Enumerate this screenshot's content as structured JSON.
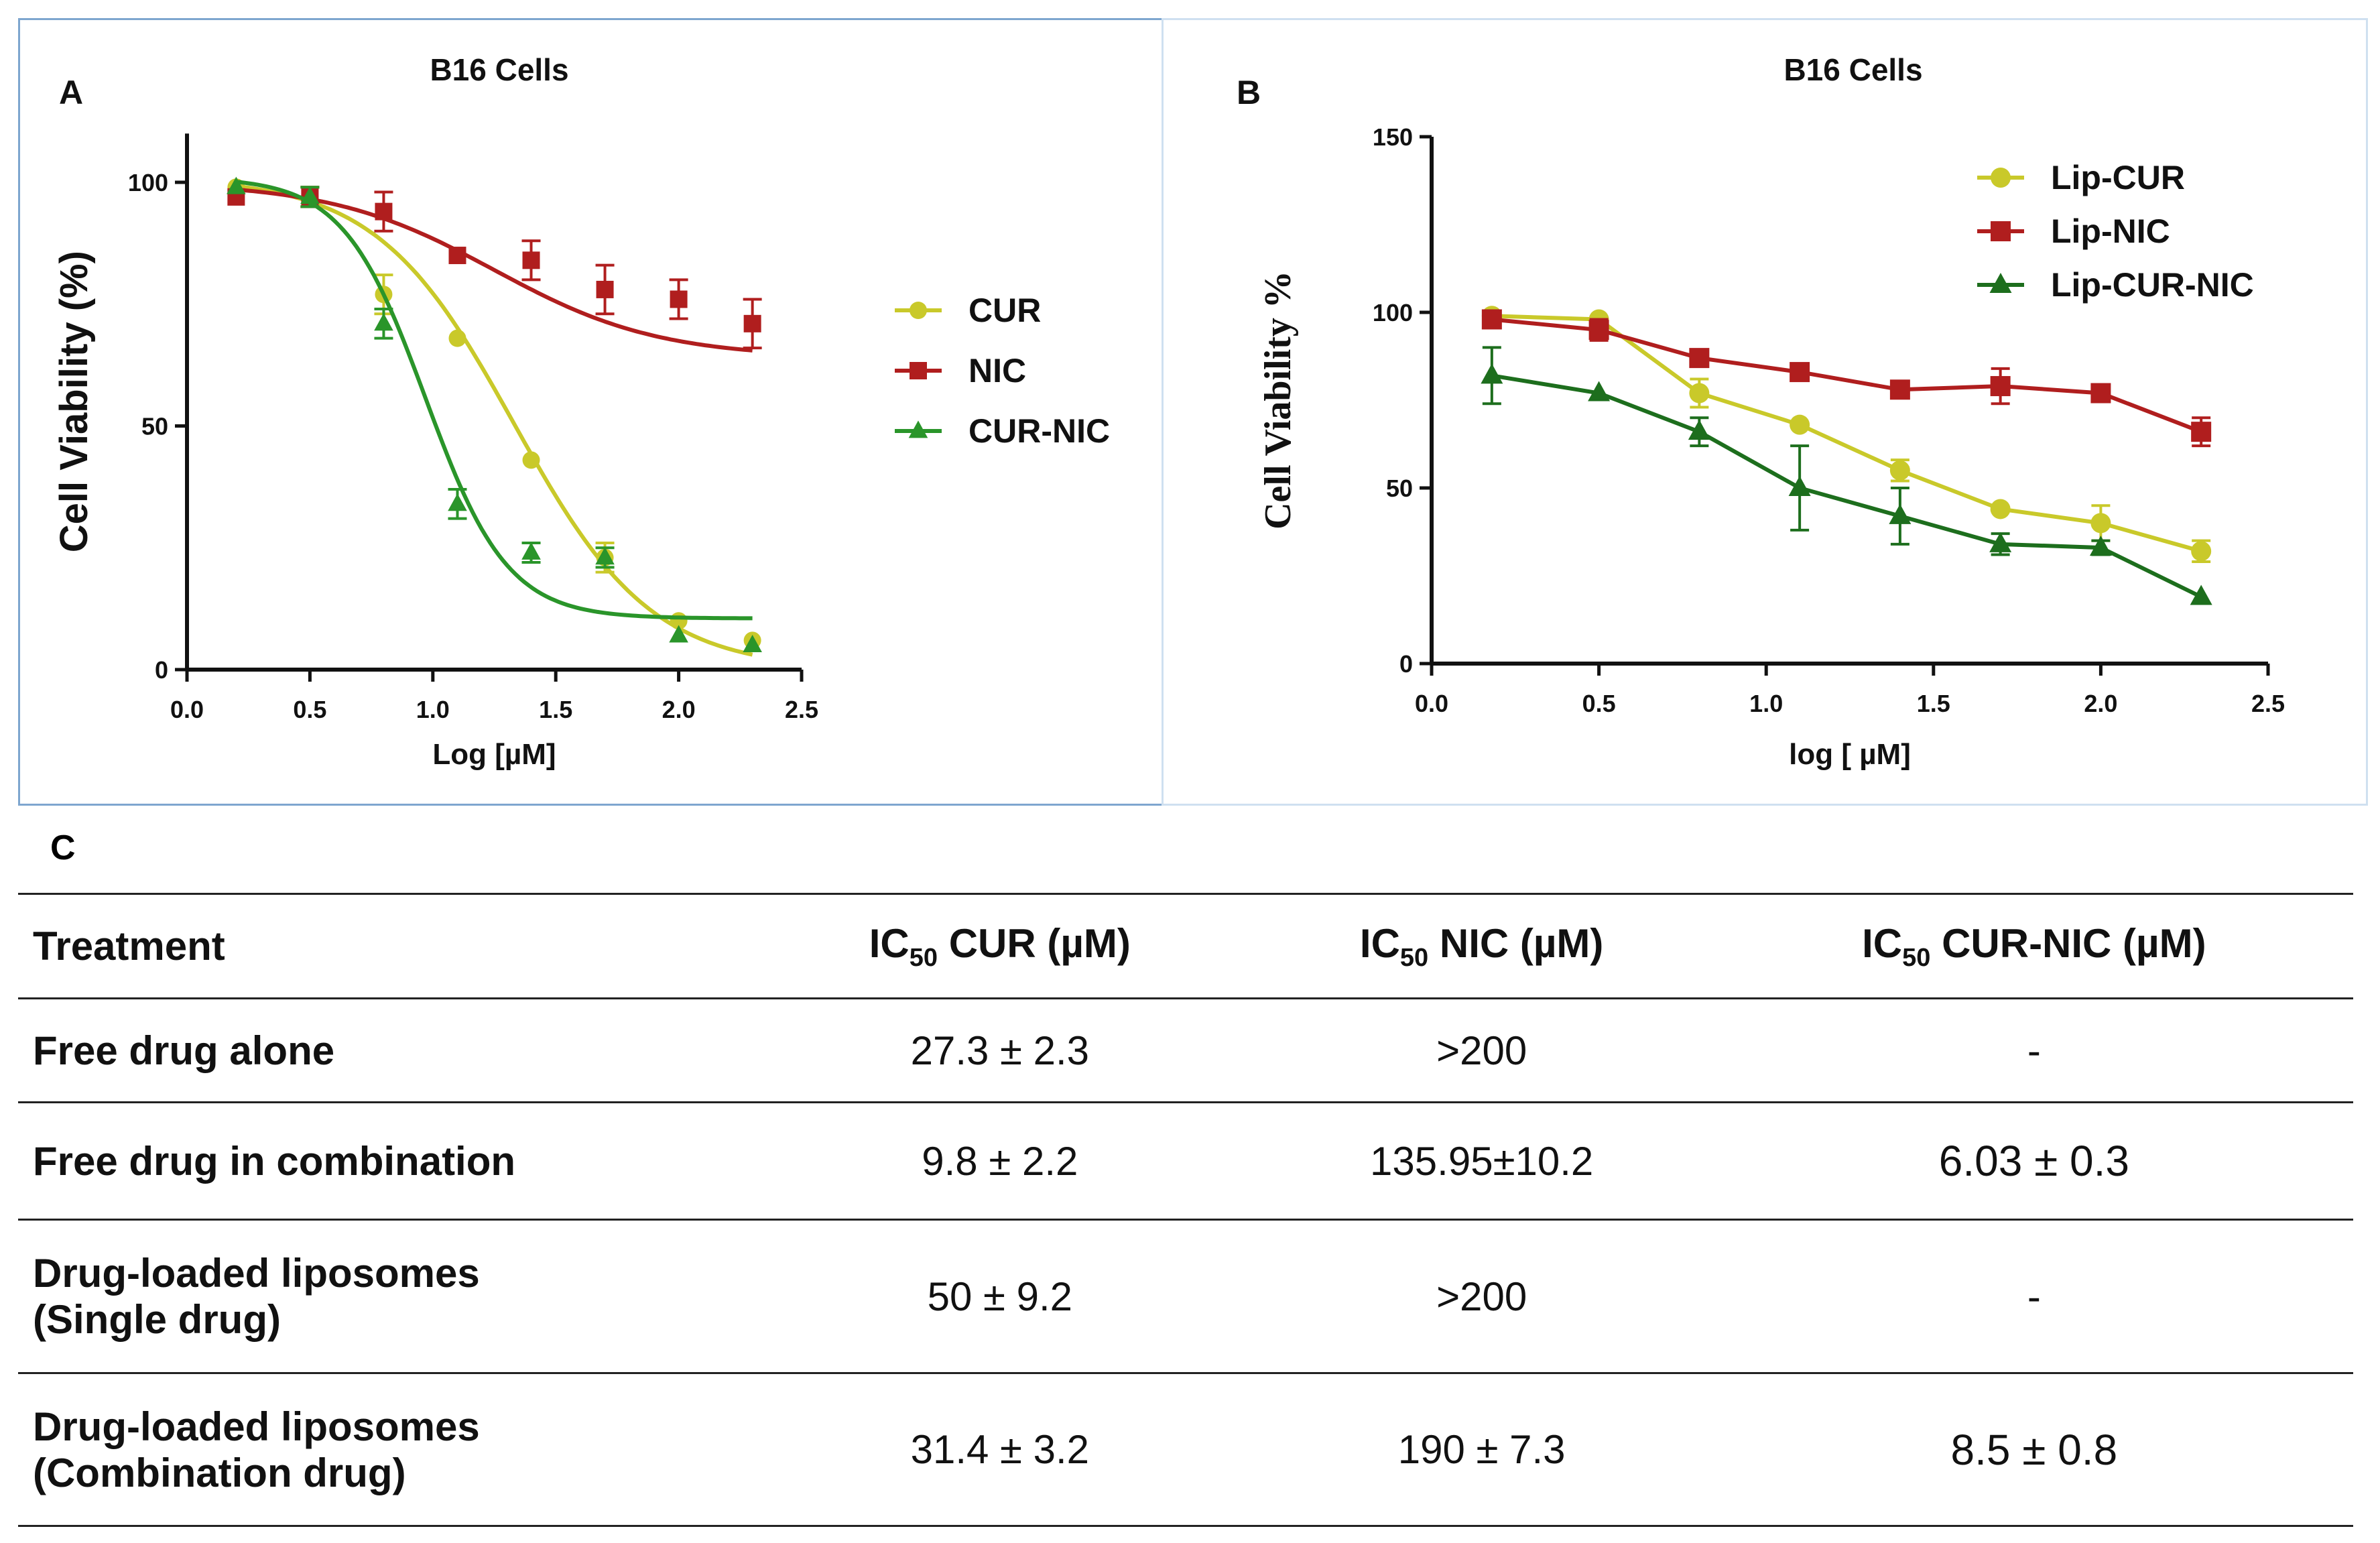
{
  "chart_data": [
    {
      "panel": "A",
      "type": "scatter",
      "title": "B16 Cells",
      "xlabel": "Log [µM]",
      "ylabel": "Cell Viability (%)",
      "xlim": [
        0,
        2.5
      ],
      "ylim": [
        0,
        110
      ],
      "xticks": [
        "0.0",
        "0.5",
        "1.0",
        "1.5",
        "2.0",
        "2.5"
      ],
      "yticks": [
        "0",
        "50",
        "100"
      ],
      "legend_position": "right",
      "fit": "four-parameter sigmoid curve",
      "x": [
        0.2,
        0.5,
        0.8,
        1.1,
        1.4,
        1.7,
        2.0,
        2.3
      ],
      "series": [
        {
          "name": "CUR",
          "color": "#c9c92a",
          "marker": "circle",
          "values": [
            99,
            97,
            77,
            68,
            43,
            23,
            10,
            6
          ],
          "errors": [
            1,
            2,
            4,
            1,
            1,
            3,
            1,
            1
          ],
          "fit_params": {
            "top": 101,
            "bottom": 0,
            "logIC50": 1.33,
            "hill": 1.55
          }
        },
        {
          "name": "NIC",
          "color": "#b01e1e",
          "marker": "square",
          "values": [
            97,
            97,
            94,
            85,
            84,
            78,
            76,
            71
          ],
          "errors": [
            1,
            2,
            4,
            1,
            4,
            5,
            4,
            5
          ],
          "fit_params": {
            "top": 100,
            "bottom": 64,
            "logIC50": 1.25,
            "hill": 1.3
          }
        },
        {
          "name": "CUR-NIC",
          "color": "#2a952a",
          "marker": "triangle",
          "values": [
            99,
            97,
            71,
            34,
            24,
            23,
            7,
            5
          ],
          "errors": [
            1,
            2,
            3,
            3,
            2,
            2,
            1,
            1
          ],
          "fit_params": {
            "top": 101,
            "bottom": 10.5,
            "logIC50": 0.97,
            "hill": 2.6
          }
        }
      ]
    },
    {
      "panel": "B",
      "type": "line",
      "title": "B16 Cells",
      "xlabel": "log [ µM]",
      "ylabel": "Cell Viability %",
      "xlim": [
        0,
        2.5
      ],
      "ylim": [
        0,
        150
      ],
      "xticks": [
        "0.0",
        "0.5",
        "1.0",
        "1.5",
        "2.0",
        "2.5"
      ],
      "yticks": [
        "0",
        "50",
        "100",
        "150"
      ],
      "legend_position": "top-right",
      "x": [
        0.18,
        0.5,
        0.8,
        1.1,
        1.4,
        1.7,
        2.0,
        2.3
      ],
      "series": [
        {
          "name": "Lip-CUR",
          "color": "#c9c92a",
          "marker": "circle",
          "values": [
            99,
            98,
            77,
            68,
            55,
            44,
            40,
            32
          ],
          "errors": [
            1,
            1,
            4,
            1,
            3,
            1,
            5,
            3
          ]
        },
        {
          "name": "Lip-NIC",
          "color": "#b01e1e",
          "marker": "square",
          "values": [
            98,
            95,
            87,
            83,
            78,
            79,
            77,
            66
          ],
          "errors": [
            1,
            3,
            1,
            1,
            2,
            5,
            1,
            4
          ]
        },
        {
          "name": "Lip-CUR-NIC",
          "color": "#1d6e1d",
          "marker": "triangle",
          "values": [
            82,
            77,
            66,
            50,
            42,
            34,
            33,
            19
          ],
          "errors": [
            8,
            1,
            4,
            12,
            8,
            3,
            2,
            1
          ]
        }
      ]
    }
  ],
  "panel_labels": {
    "a": "A",
    "b": "B",
    "c": "C"
  },
  "table": {
    "headers": [
      "Treatment",
      "IC",
      "50",
      " CUR (µM)",
      " NIC (µM)",
      " CUR-NIC (µM)"
    ],
    "rows": [
      {
        "treatment": "Free drug alone",
        "treatment2": "",
        "cur": "27.3 ± 2.3",
        "nic": ">200",
        "curnic": "-"
      },
      {
        "treatment": "Free drug in combination",
        "treatment2": "",
        "cur": "9.8 ± 2.2",
        "nic": "135.95±10.2",
        "curnic": "6.03 ± 0.3"
      },
      {
        "treatment": "Drug-loaded liposomes",
        "treatment2": "(Single drug)",
        "cur": "50 ± 9.2",
        "nic": ">200",
        "curnic": "-"
      },
      {
        "treatment": "Drug-loaded liposomes",
        "treatment2": "(Combination drug)",
        "cur": "31.4 ± 3.2",
        "nic": "190 ± 7.3",
        "curnic": "8.5 ± 0.8"
      }
    ]
  }
}
